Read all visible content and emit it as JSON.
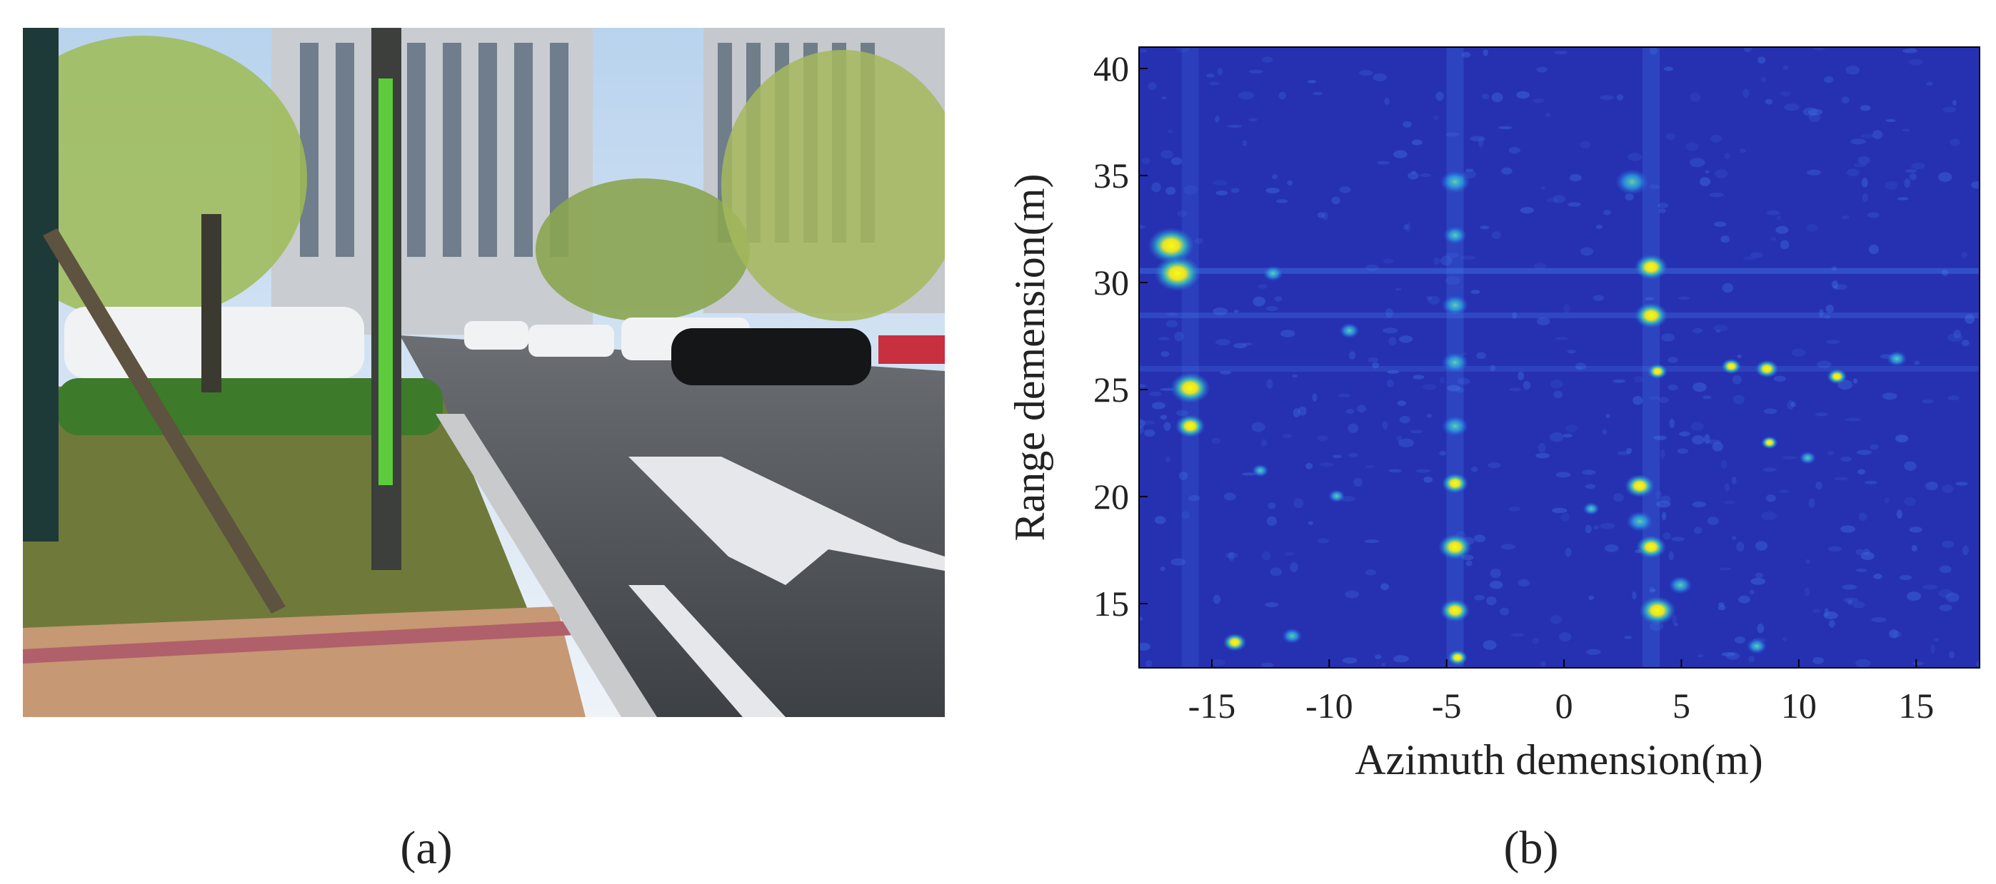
{
  "panel_a": {
    "caption": "(a)"
  },
  "panel_b": {
    "caption": "(b)",
    "chart_data": {
      "type": "heatmap",
      "xlabel": "Azimuth demension(m)",
      "ylabel": "Range demension(m)",
      "xlim": [
        -18.1,
        17.7
      ],
      "ylim": [
        12,
        41
      ],
      "xticks": [
        -15,
        -10,
        -5,
        0,
        5,
        10,
        15
      ],
      "yticks": [
        15,
        20,
        25,
        30,
        35,
        40
      ],
      "background_color": "#2631b2"
    }
  }
}
